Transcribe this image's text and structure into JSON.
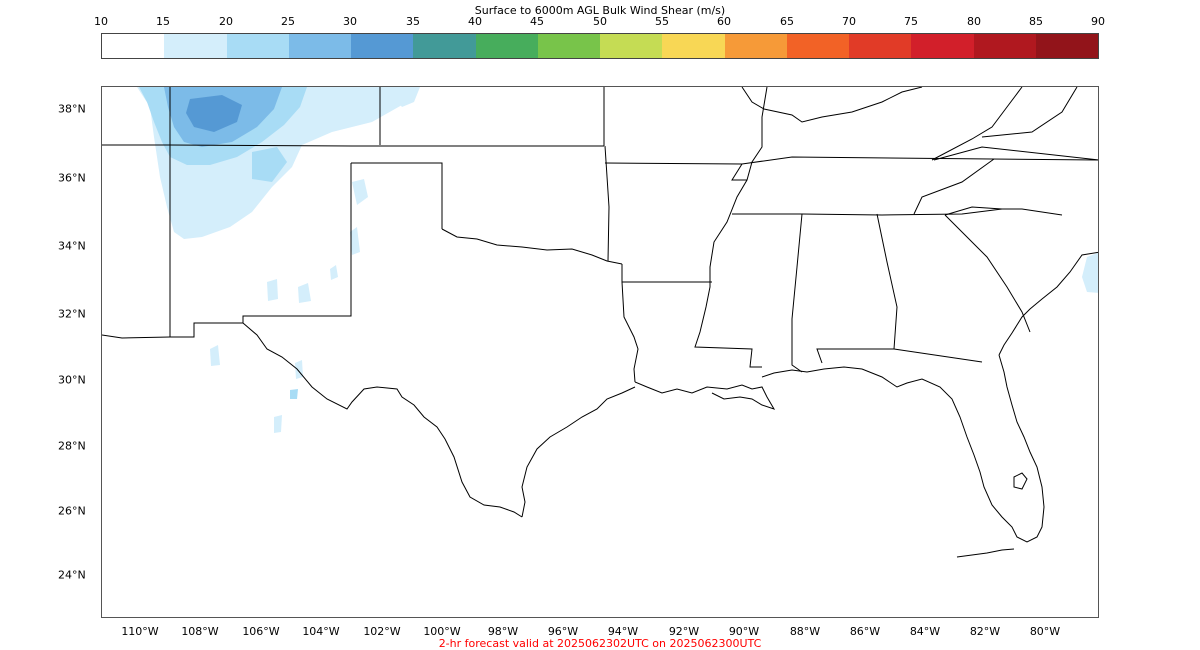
{
  "title": "Surface to 6000m AGL Bulk Wind Shear (m/s)",
  "colorbar": {
    "ticks": [
      "10",
      "15",
      "20",
      "25",
      "30",
      "35",
      "40",
      "45",
      "50",
      "55",
      "60",
      "65",
      "70",
      "75",
      "80",
      "85",
      "90"
    ],
    "colors": [
      "#ffffff",
      "#d4eefb",
      "#a8dcf5",
      "#7cbbe8",
      "#5599d4",
      "#429a98",
      "#47ad5c",
      "#78c44a",
      "#c5dc54",
      "#f8d755",
      "#f69a38",
      "#f26226",
      "#e13b27",
      "#d21f2a",
      "#b0181f",
      "#92141a"
    ]
  },
  "map": {
    "lat_labels": [
      "38°N",
      "36°N",
      "34°N",
      "32°N",
      "30°N",
      "28°N",
      "26°N",
      "24°N"
    ],
    "lon_labels": [
      "110°W",
      "108°W",
      "106°W",
      "104°W",
      "102°W",
      "100°W",
      "98°W",
      "96°W",
      "94°W",
      "92°W",
      "90°W",
      "88°W",
      "86°W",
      "84°W",
      "82°W",
      "80°W"
    ]
  },
  "footer": "2-hr forecast valid at 2025062302UTC on 2025062300UTC"
}
